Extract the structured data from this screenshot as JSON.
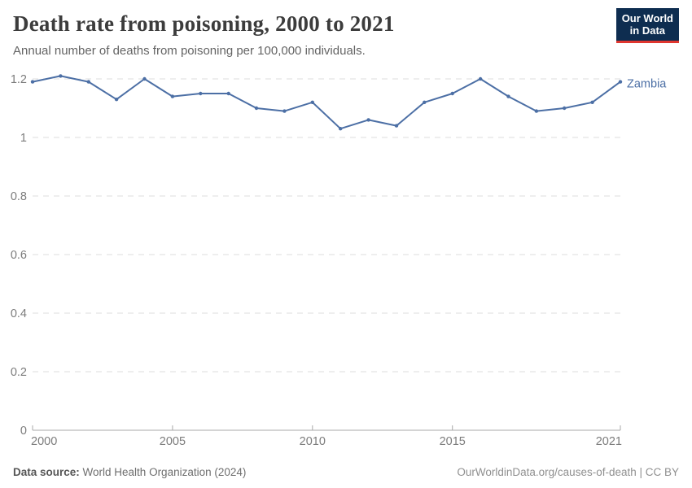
{
  "header": {
    "title": "Death rate from poisoning, 2000 to 2021",
    "subtitle": "Annual number of deaths from poisoning per 100,000 individuals.",
    "logo": {
      "line1": "Our World",
      "line2": "in Data",
      "bg_color": "#0e2d50",
      "accent_color": "#e0362f"
    }
  },
  "chart_data": {
    "type": "line",
    "title": "Death rate from poisoning, 2000 to 2021",
    "xlabel": "",
    "ylabel": "Annual deaths from poisoning per 100,000 individuals",
    "xlim": [
      2000,
      2021
    ],
    "ylim": [
      0,
      1.2
    ],
    "x_ticks": [
      2000,
      2005,
      2010,
      2015,
      2021
    ],
    "y_ticks": [
      0,
      0.2,
      0.4,
      0.6,
      0.8,
      1,
      1.2
    ],
    "grid": "horizontal-dashed",
    "legend_position": "end-of-line",
    "grid_color": "#dcdcdc",
    "axis_color": "#a8a8a8",
    "tick_label_color": "#7c7c7c",
    "series": [
      {
        "name": "Zambia",
        "color": "#4c6fa5",
        "x": [
          2000,
          2001,
          2002,
          2003,
          2004,
          2005,
          2006,
          2007,
          2008,
          2009,
          2010,
          2011,
          2012,
          2013,
          2014,
          2015,
          2016,
          2017,
          2018,
          2019,
          2020,
          2021
        ],
        "values": [
          1.19,
          1.21,
          1.19,
          1.13,
          1.2,
          1.14,
          1.15,
          1.15,
          1.1,
          1.09,
          1.12,
          1.03,
          1.06,
          1.04,
          1.12,
          1.15,
          1.2,
          1.14,
          1.09,
          1.1,
          1.12,
          1.19
        ]
      }
    ]
  },
  "footer": {
    "source_label": "Data source:",
    "source": " World Health Organization (2024)",
    "link": "OurWorldinData.org/causes-of-death | CC BY"
  }
}
